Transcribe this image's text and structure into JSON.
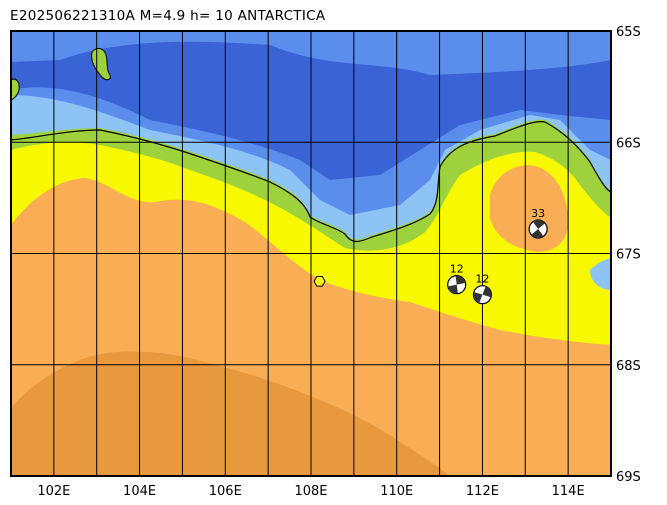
{
  "header": {
    "event_id": "E202506221310A",
    "magnitude_text": "M=4.9",
    "depth_text": "h= 10",
    "region": "ANTARCTICA"
  },
  "map": {
    "lon_range": [
      101,
      115
    ],
    "lat_range": [
      -65,
      -69
    ],
    "lon_ticks": [
      "102E",
      "104E",
      "106E",
      "108E",
      "110E",
      "112E",
      "114E"
    ],
    "lat_ticks": [
      "65S",
      "66S",
      "67S",
      "68S",
      "69S"
    ],
    "colors": {
      "deep_ocean": "#3a63d6",
      "mid_ocean": "#5b8ded",
      "shallow_ocean": "#8dc4f5",
      "coast_green": "#9ed23c",
      "yellow": "#f8f800",
      "orange": "#f9ad55",
      "dark_orange": "#e8993e",
      "grid": "#000000"
    },
    "events": [
      {
        "label": "33",
        "lon": 113.3,
        "lat": -66.78
      },
      {
        "label": "12",
        "lon": 111.4,
        "lat": -67.28
      },
      {
        "label": "12",
        "lon": 112.0,
        "lat": -67.37
      }
    ],
    "epicenter_marker": {
      "lon": 108.2,
      "lat": -67.25
    }
  }
}
